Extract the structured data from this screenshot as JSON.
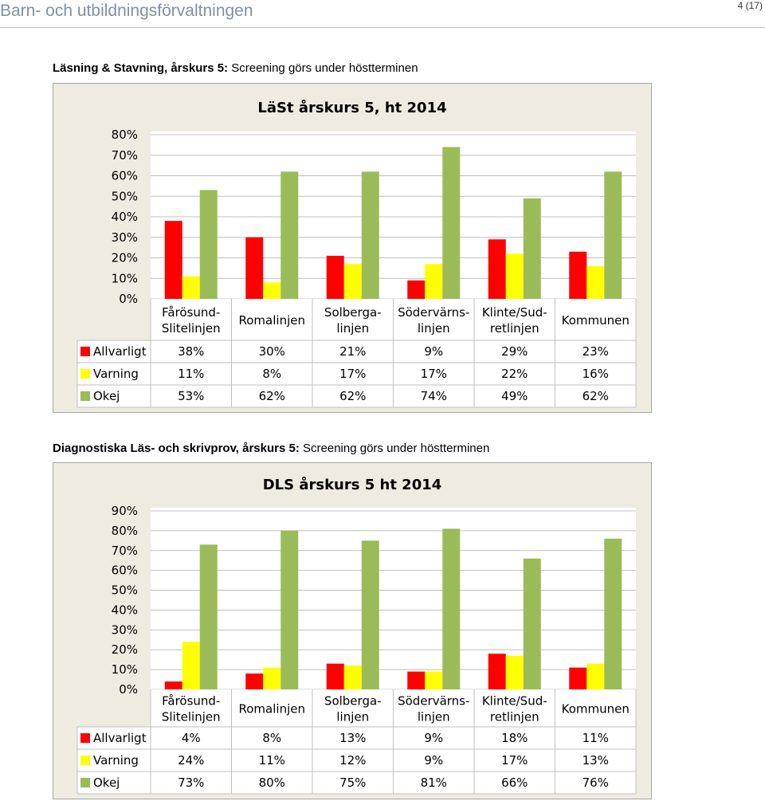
{
  "document": {
    "header_title": "Barn- och utbildningsförvaltningen",
    "page_number": "4 (17)"
  },
  "sections": [
    {
      "heading_bold": "Läsning & Stavning, årskurs 5:",
      "heading_rest": " Screening görs under höstterminen"
    },
    {
      "heading_bold": "Diagnostiska Läs- och skrivprov, årskurs 5:",
      "heading_rest": " Screening görs under höstterminen"
    }
  ],
  "colors": {
    "Allvarligt": "#ff0000",
    "Varning": "#ffff00",
    "Okej": "#9bbb59",
    "plot_bg": "#ffffff",
    "frame_bg": "#eeece1",
    "grid": "#bfbfbf"
  },
  "chart_data": [
    {
      "type": "bar",
      "title": "LäSt årskurs 5, ht 2014",
      "categories": [
        [
          "Fårösund-",
          "Slitelinjen"
        ],
        [
          "Romalinjen"
        ],
        [
          "Solberga-",
          "linjen"
        ],
        [
          "Södervärns-",
          "linjen"
        ],
        [
          "Klinte/Sud-",
          "retlinjen"
        ],
        [
          "Kommunen"
        ]
      ],
      "series": [
        {
          "name": "Allvarligt",
          "values": [
            38,
            30,
            21,
            9,
            29,
            23
          ],
          "labels": [
            "38%",
            "30%",
            "21%",
            "9%",
            "29%",
            "23%"
          ]
        },
        {
          "name": "Varning",
          "values": [
            11,
            8,
            17,
            17,
            22,
            16
          ],
          "labels": [
            "11%",
            "8%",
            "17%",
            "17%",
            "22%",
            "16%"
          ]
        },
        {
          "name": "Okej",
          "values": [
            53,
            62,
            62,
            74,
            49,
            62
          ],
          "labels": [
            "53%",
            "62%",
            "62%",
            "74%",
            "49%",
            "62%"
          ]
        }
      ],
      "y_ticks": [
        "0%",
        "10%",
        "20%",
        "30%",
        "40%",
        "50%",
        "60%",
        "70%",
        "80%"
      ],
      "ylim": [
        0,
        80
      ],
      "grid": true,
      "legend": "data-table"
    },
    {
      "type": "bar",
      "title": "DLS årskurs 5 ht 2014",
      "categories": [
        [
          "Fårösund-",
          "Slitelinjen"
        ],
        [
          "Romalinjen"
        ],
        [
          "Solberga-",
          "linjen"
        ],
        [
          "Södervärns-",
          "linjen"
        ],
        [
          "Klinte/Sud-",
          "retlinjen"
        ],
        [
          "Kommunen"
        ]
      ],
      "series": [
        {
          "name": "Allvarligt",
          "values": [
            4,
            8,
            13,
            9,
            18,
            11
          ],
          "labels": [
            "4%",
            "8%",
            "13%",
            "9%",
            "18%",
            "11%"
          ]
        },
        {
          "name": "Varning",
          "values": [
            24,
            11,
            12,
            9,
            17,
            13
          ],
          "labels": [
            "24%",
            "11%",
            "12%",
            "9%",
            "17%",
            "13%"
          ]
        },
        {
          "name": "Okej",
          "values": [
            73,
            80,
            75,
            81,
            66,
            76
          ],
          "labels": [
            "73%",
            "80%",
            "75%",
            "81%",
            "66%",
            "76%"
          ]
        }
      ],
      "y_ticks": [
        "0%",
        "10%",
        "20%",
        "30%",
        "40%",
        "50%",
        "60%",
        "70%",
        "80%",
        "90%"
      ],
      "ylim": [
        0,
        90
      ],
      "grid": true,
      "legend": "data-table"
    }
  ]
}
